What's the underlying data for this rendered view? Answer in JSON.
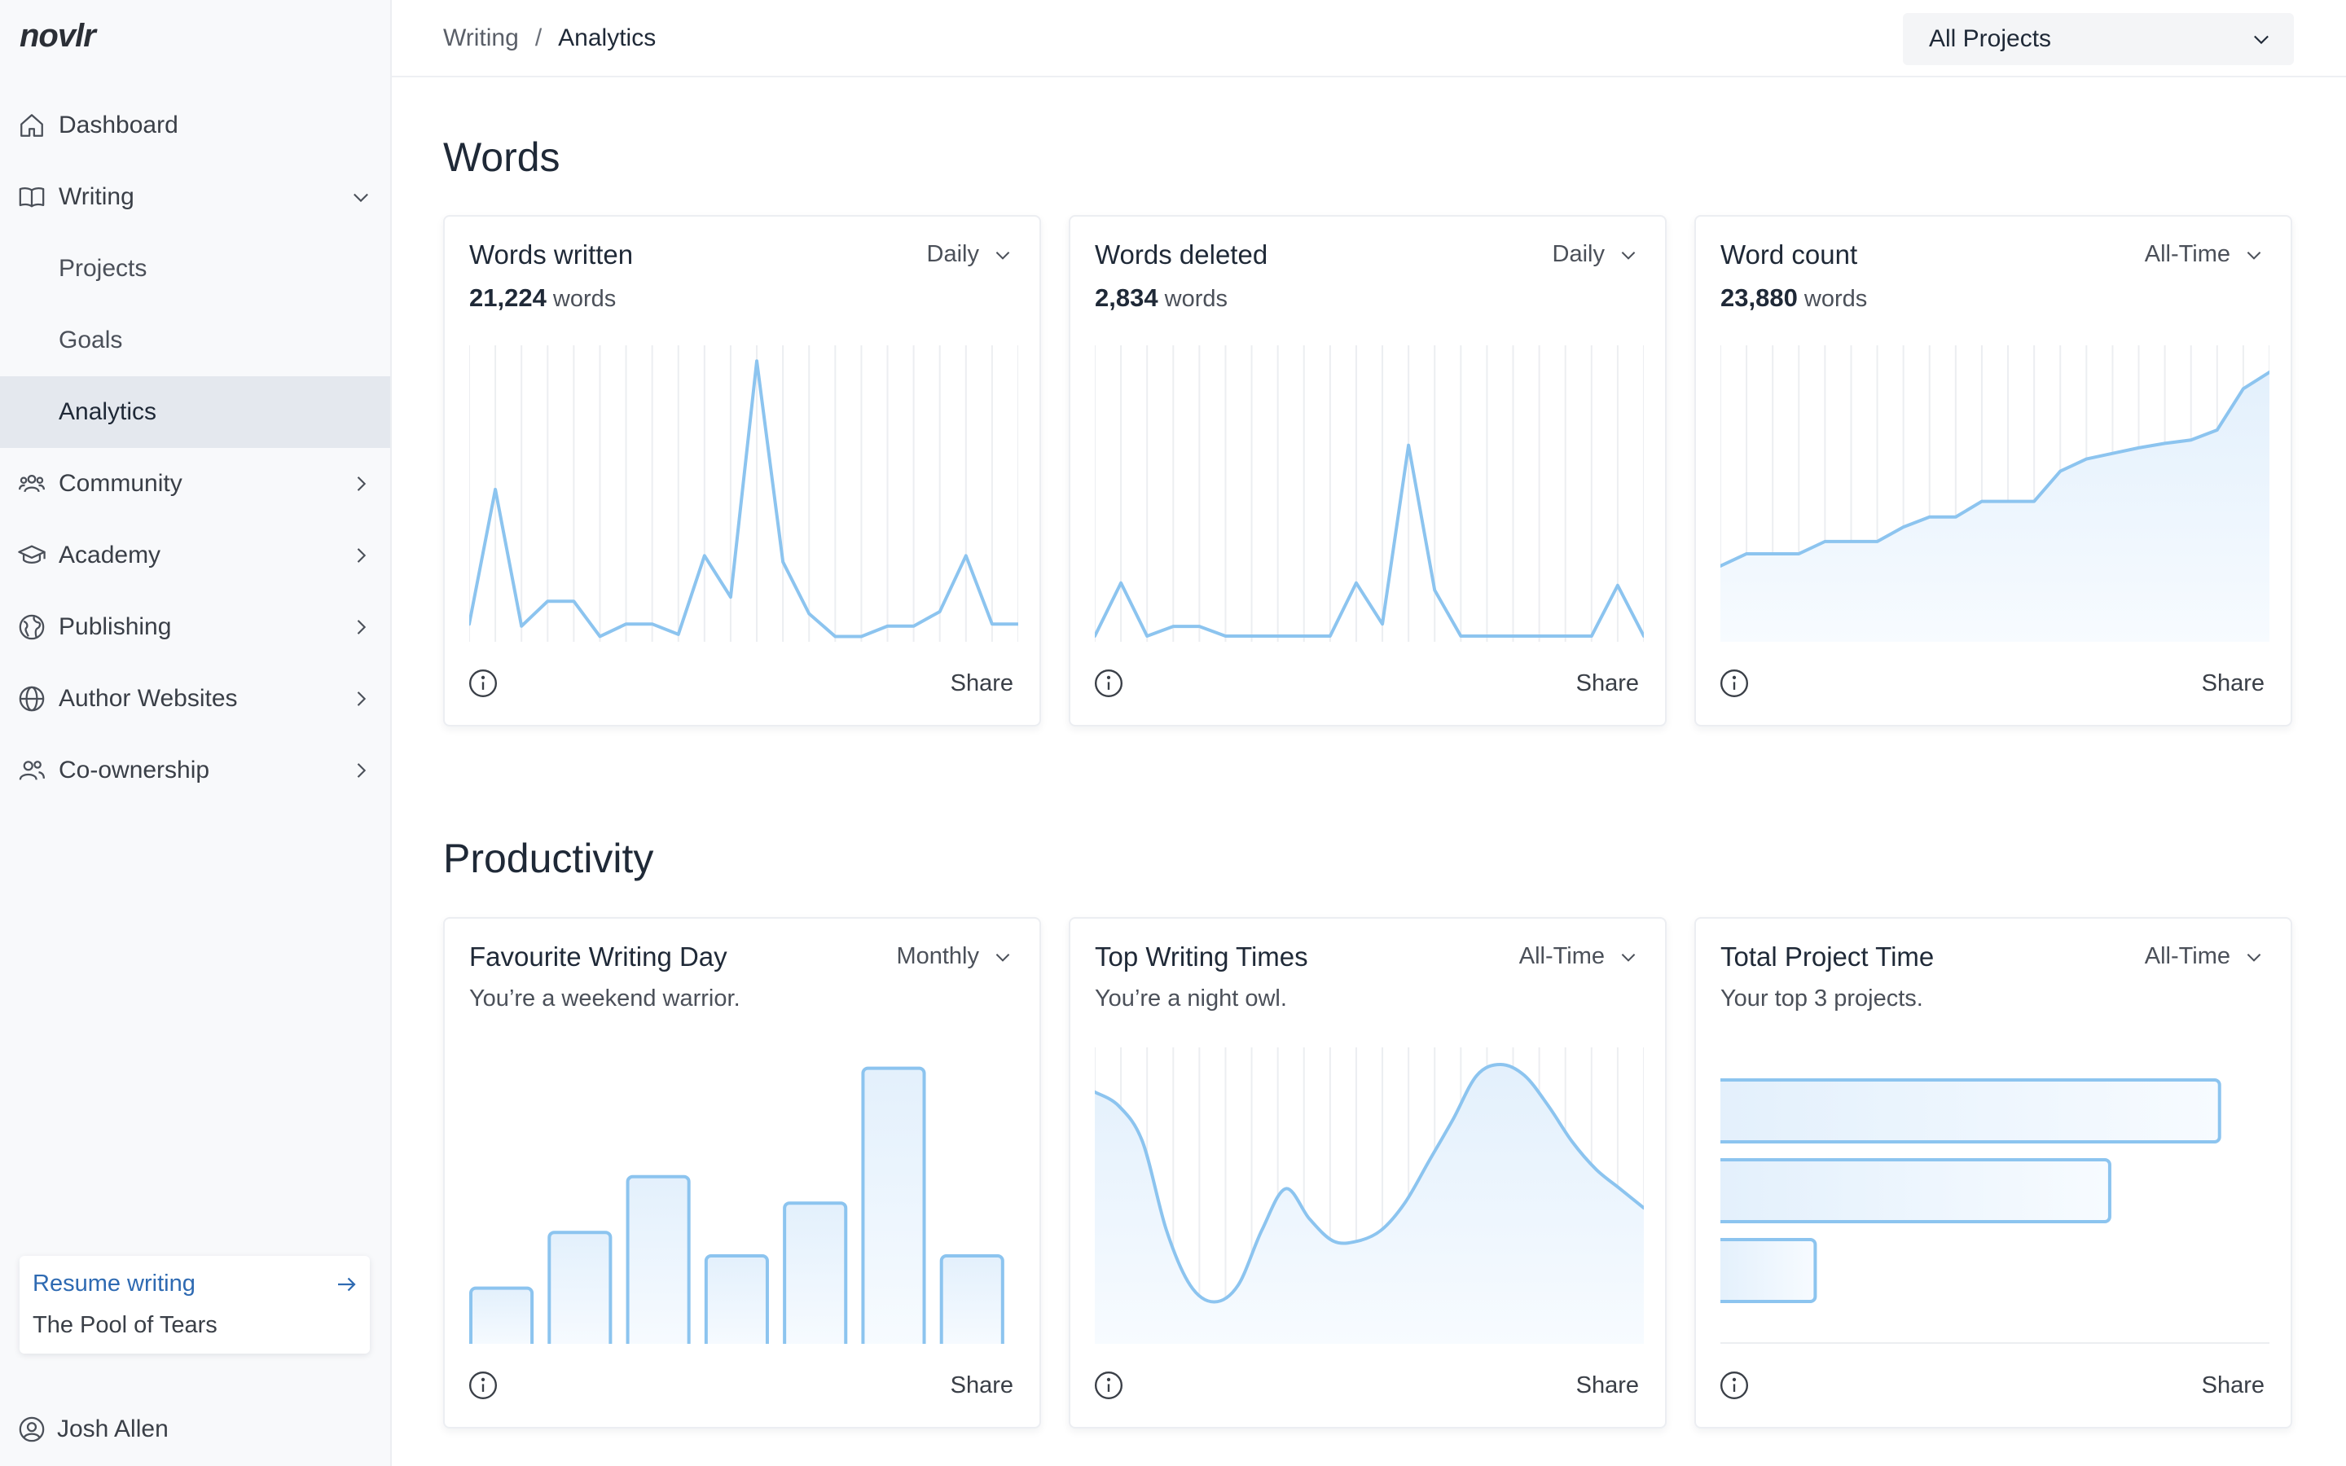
{
  "app": {
    "logo": "novlr"
  },
  "sidebar": {
    "items": [
      {
        "label": "Dashboard",
        "icon": "home-icon"
      },
      {
        "label": "Writing",
        "icon": "book-icon",
        "expanded": true
      },
      {
        "label": "Projects"
      },
      {
        "label": "Goals"
      },
      {
        "label": "Analytics",
        "active": true
      },
      {
        "label": "Community",
        "icon": "users-icon"
      },
      {
        "label": "Academy",
        "icon": "graduation-cap-icon"
      },
      {
        "label": "Publishing",
        "icon": "globe-publish-icon"
      },
      {
        "label": "Author Websites",
        "icon": "globe-icon"
      },
      {
        "label": "Co-ownership",
        "icon": "user-group-icon"
      }
    ],
    "resume": {
      "link": "Resume writing",
      "title": "The Pool of Tears"
    },
    "user": {
      "name": "Josh Allen"
    }
  },
  "topbar": {
    "breadcrumb": [
      "Writing",
      "Analytics"
    ],
    "project_select": "All Projects"
  },
  "sections": {
    "words": "Words",
    "productivity": "Productivity"
  },
  "cards": {
    "words_written": {
      "title": "Words written",
      "period": "Daily",
      "value": "21,224",
      "unit": "words",
      "share": "Share"
    },
    "words_deleted": {
      "title": "Words deleted",
      "period": "Daily",
      "value": "2,834",
      "unit": "words",
      "share": "Share"
    },
    "word_count": {
      "title": "Word count",
      "period": "All-Time",
      "value": "23,880",
      "unit": "words",
      "share": "Share"
    },
    "fav_day": {
      "title": "Favourite Writing Day",
      "period": "Monthly",
      "subtitle": "You’re a weekend warrior.",
      "share": "Share"
    },
    "top_times": {
      "title": "Top Writing Times",
      "period": "All-Time",
      "subtitle": "You’re a night owl.",
      "share": "Share"
    },
    "project_time": {
      "title": "Total Project Time",
      "period": "All-Time",
      "subtitle": "Your top 3 projects.",
      "share": "Share"
    }
  },
  "colors": {
    "accent": "#8cc4ef",
    "fill": "#eaf4fd",
    "grid": "#eceef1",
    "link": "#2e6ab2"
  },
  "chart_data": [
    {
      "type": "line",
      "title": "Words written",
      "x": [
        1,
        2,
        3,
        4,
        5,
        6,
        7,
        8,
        9,
        10,
        11,
        12,
        13,
        14,
        15,
        16,
        17,
        18,
        19,
        20,
        21,
        22
      ],
      "values": [
        35,
        360,
        30,
        90,
        90,
        5,
        35,
        35,
        10,
        200,
        100,
        670,
        185,
        60,
        5,
        5,
        30,
        30,
        65,
        200,
        35,
        35
      ],
      "ylim": [
        0,
        700
      ]
    },
    {
      "type": "line",
      "title": "Words deleted",
      "x": [
        1,
        2,
        3,
        4,
        5,
        6,
        7,
        8,
        9,
        10,
        11,
        12,
        13,
        14,
        15,
        16,
        17,
        18,
        19,
        20,
        21,
        22
      ],
      "values": [
        5,
        115,
        5,
        25,
        25,
        5,
        5,
        5,
        5,
        5,
        115,
        30,
        400,
        100,
        5,
        5,
        5,
        5,
        5,
        5,
        110,
        5
      ],
      "ylim": [
        0,
        600
      ]
    },
    {
      "type": "area",
      "title": "Word count",
      "x": [
        1,
        2,
        3,
        4,
        5,
        6,
        7,
        8,
        9,
        10,
        11,
        12,
        13,
        14,
        15,
        16,
        17,
        18,
        19,
        20,
        21,
        22
      ],
      "values": [
        6500,
        7600,
        7600,
        7600,
        8700,
        8700,
        8700,
        10000,
        10900,
        10900,
        12300,
        12300,
        12300,
        15000,
        16100,
        16600,
        17100,
        17500,
        17800,
        18700,
        22400,
        23880
      ],
      "ylim": [
        0,
        26000
      ]
    },
    {
      "type": "bar",
      "title": "Favourite Writing Day",
      "categories": [
        "1",
        "2",
        "3",
        "4",
        "5",
        "6",
        "7"
      ],
      "values": [
        19,
        38,
        57,
        30,
        48,
        94,
        30
      ],
      "ylim": [
        0,
        100
      ]
    },
    {
      "type": "area",
      "title": "Top Writing Times",
      "x": [
        0,
        1,
        2,
        3,
        4,
        5,
        6,
        7,
        8,
        9,
        10,
        11,
        12,
        13,
        14,
        15,
        16,
        17,
        18,
        19,
        20,
        21,
        22,
        23
      ],
      "values": [
        90,
        85,
        72,
        40,
        20,
        14,
        20,
        40,
        55,
        44,
        36,
        36,
        40,
        50,
        65,
        80,
        96,
        100,
        96,
        85,
        72,
        62,
        55,
        48
      ],
      "ylim": [
        0,
        105
      ]
    },
    {
      "type": "bar",
      "orientation": "horizontal",
      "title": "Total Project Time",
      "categories": [
        "1",
        "2",
        "3"
      ],
      "values": [
        100,
        78,
        19
      ],
      "ylim": [
        0,
        110
      ]
    }
  ]
}
